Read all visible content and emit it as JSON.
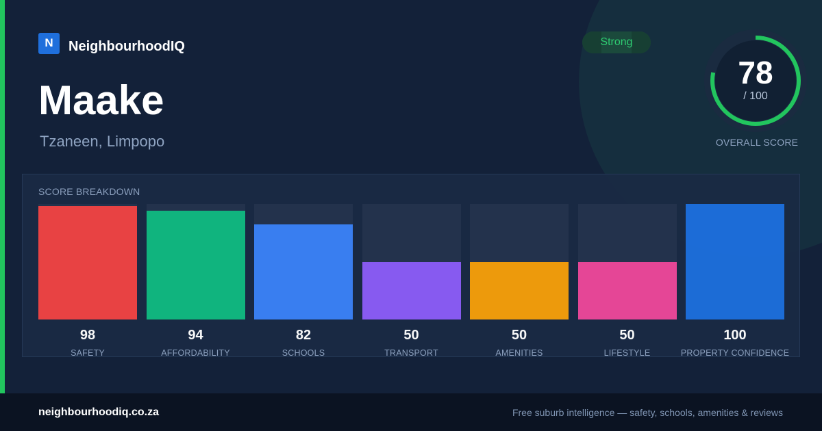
{
  "brand": {
    "logo_letter": "N",
    "name": "NeighbourhoodIQ"
  },
  "suburb": {
    "name": "Maake",
    "location": "Tzaneen, Limpopo"
  },
  "rating_badge": {
    "label": "Strong",
    "color": "#22c55e"
  },
  "overall": {
    "score": "78",
    "max_label": "/ 100",
    "max": 100,
    "label": "OVERALL SCORE",
    "ring_color": "#22c55e"
  },
  "breakdown": {
    "title": "SCORE BREAKDOWN"
  },
  "chart_data": {
    "type": "bar",
    "categories": [
      "SAFETY",
      "AFFORDABILITY",
      "SCHOOLS",
      "TRANSPORT",
      "AMENITIES",
      "LIFESTYLE",
      "PROPERTY CONFIDENCE"
    ],
    "values": [
      98,
      94,
      82,
      50,
      50,
      50,
      100
    ],
    "value_labels": [
      "98",
      "94",
      "82",
      "50",
      "50",
      "50",
      "100"
    ],
    "colors": [
      "#ef4444",
      "#10b981",
      "#3b82f6",
      "#8b5cf6",
      "#f59e0b",
      "#ec4899",
      "#1d6fdc"
    ],
    "ylim": [
      0,
      100
    ],
    "grid": false,
    "legend": "none"
  },
  "footer": {
    "url": "neighbourhoodiq.co.za",
    "tagline": "Free suburb intelligence — safety, schools, amenities & reviews"
  }
}
